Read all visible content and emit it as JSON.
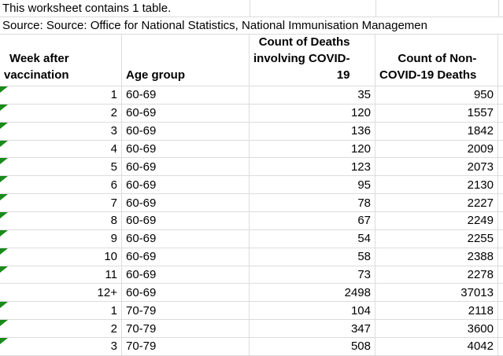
{
  "notes": {
    "worksheet_note": "This worksheet contains 1 table.",
    "source_note": "Source: Source: Office for National Statistics, National Immunisation Managemen"
  },
  "table": {
    "headers": {
      "week": "Week after\nvaccination",
      "age": "Age group",
      "covid_deaths": "Count of Deaths\ninvolving COVID-\n19",
      "non_covid_deaths": "Count of Non-\nCOVID-19 Deaths"
    },
    "rows": [
      {
        "week": "1",
        "age": "60-69",
        "covid_deaths": "35",
        "non_covid_deaths": "950",
        "indicator": true
      },
      {
        "week": "2",
        "age": "60-69",
        "covid_deaths": "120",
        "non_covid_deaths": "1557",
        "indicator": true
      },
      {
        "week": "3",
        "age": "60-69",
        "covid_deaths": "136",
        "non_covid_deaths": "1842",
        "indicator": true
      },
      {
        "week": "4",
        "age": "60-69",
        "covid_deaths": "120",
        "non_covid_deaths": "2009",
        "indicator": true
      },
      {
        "week": "5",
        "age": "60-69",
        "covid_deaths": "123",
        "non_covid_deaths": "2073",
        "indicator": true
      },
      {
        "week": "6",
        "age": "60-69",
        "covid_deaths": "95",
        "non_covid_deaths": "2130",
        "indicator": true
      },
      {
        "week": "7",
        "age": "60-69",
        "covid_deaths": "78",
        "non_covid_deaths": "2227",
        "indicator": true
      },
      {
        "week": "8",
        "age": "60-69",
        "covid_deaths": "67",
        "non_covid_deaths": "2249",
        "indicator": true
      },
      {
        "week": "9",
        "age": "60-69",
        "covid_deaths": "54",
        "non_covid_deaths": "2255",
        "indicator": true
      },
      {
        "week": "10",
        "age": "60-69",
        "covid_deaths": "58",
        "non_covid_deaths": "2388",
        "indicator": true
      },
      {
        "week": "11",
        "age": "60-69",
        "covid_deaths": "73",
        "non_covid_deaths": "2278",
        "indicator": true
      },
      {
        "week": "12+",
        "age": "60-69",
        "covid_deaths": "2498",
        "non_covid_deaths": "37013",
        "indicator": false
      },
      {
        "week": "1",
        "age": "70-79",
        "covid_deaths": "104",
        "non_covid_deaths": "2118",
        "indicator": true
      },
      {
        "week": "2",
        "age": "70-79",
        "covid_deaths": "347",
        "non_covid_deaths": "3600",
        "indicator": true
      },
      {
        "week": "3",
        "age": "70-79",
        "covid_deaths": "508",
        "non_covid_deaths": "4042",
        "indicator": true
      }
    ]
  },
  "colors": {
    "background": "#ffffff",
    "gridline": "#dcdcdc",
    "text": "#000000",
    "error_indicator_green": "#1a8a1a"
  }
}
